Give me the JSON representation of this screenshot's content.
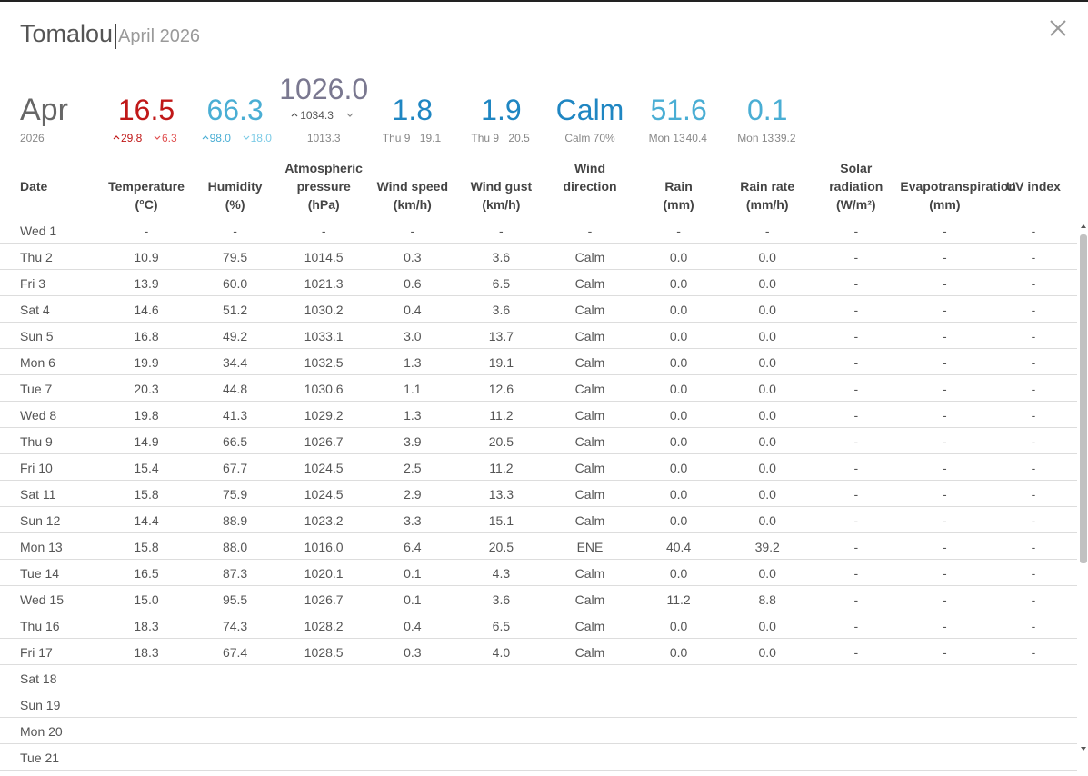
{
  "header": {
    "station": "Tomalou",
    "period": "April 2026"
  },
  "summary": {
    "month": "Apr",
    "year": "2026",
    "stats": [
      {
        "value": "16.5",
        "high": "29.8",
        "low": "6.3",
        "color": "#c01818"
      },
      {
        "value": "66.3",
        "high": "98.0",
        "low": "18.0",
        "color": "#4aaed4"
      },
      {
        "value": "1026.0",
        "high": "1034.3",
        "note": "1013.3",
        "color": "#7a7890"
      },
      {
        "value": "1.8",
        "day": "Thu 9",
        "max": "19.1",
        "color": "#1f86c2"
      },
      {
        "value": "1.9",
        "day": "Thu 9",
        "max": "20.5",
        "color": "#1f86c2"
      },
      {
        "value": "Calm",
        "note": "Calm 70%",
        "color": "#1f86c2"
      },
      {
        "value": "51.6",
        "day": "Mon 13",
        "max": "40.4",
        "color": "#4aaed4"
      },
      {
        "value": "0.1",
        "day": "Mon 13",
        "max": "39.2",
        "color": "#4aaed4"
      }
    ]
  },
  "table": {
    "headers": [
      [
        "Date"
      ],
      [
        "Temperature",
        "(°C)"
      ],
      [
        "Humidity",
        "(%)"
      ],
      [
        "Atmospheric",
        "pressure",
        "(hPa)"
      ],
      [
        "Wind speed",
        "(km/h)"
      ],
      [
        "Wind gust",
        "(km/h)"
      ],
      [
        "Wind",
        "direction"
      ],
      [
        "Rain",
        "(mm)"
      ],
      [
        "Rain rate",
        "(mm/h)"
      ],
      [
        "Solar",
        "radiation",
        "(W/m²)"
      ],
      [
        "Evapotranspiration",
        "(mm)"
      ],
      [
        "UV index"
      ]
    ],
    "rows": [
      [
        "Wed 1",
        "-",
        "-",
        "-",
        "-",
        "-",
        "-",
        "-",
        "-",
        "-",
        "-",
        "-"
      ],
      [
        "Thu 2",
        "10.9",
        "79.5",
        "1014.5",
        "0.3",
        "3.6",
        "Calm",
        "0.0",
        "0.0",
        "-",
        "-",
        "-"
      ],
      [
        "Fri 3",
        "13.9",
        "60.0",
        "1021.3",
        "0.6",
        "6.5",
        "Calm",
        "0.0",
        "0.0",
        "-",
        "-",
        "-"
      ],
      [
        "Sat 4",
        "14.6",
        "51.2",
        "1030.2",
        "0.4",
        "3.6",
        "Calm",
        "0.0",
        "0.0",
        "-",
        "-",
        "-"
      ],
      [
        "Sun 5",
        "16.8",
        "49.2",
        "1033.1",
        "3.0",
        "13.7",
        "Calm",
        "0.0",
        "0.0",
        "-",
        "-",
        "-"
      ],
      [
        "Mon 6",
        "19.9",
        "34.4",
        "1032.5",
        "1.3",
        "19.1",
        "Calm",
        "0.0",
        "0.0",
        "-",
        "-",
        "-"
      ],
      [
        "Tue 7",
        "20.3",
        "44.8",
        "1030.6",
        "1.1",
        "12.6",
        "Calm",
        "0.0",
        "0.0",
        "-",
        "-",
        "-"
      ],
      [
        "Wed 8",
        "19.8",
        "41.3",
        "1029.2",
        "1.3",
        "11.2",
        "Calm",
        "0.0",
        "0.0",
        "-",
        "-",
        "-"
      ],
      [
        "Thu 9",
        "14.9",
        "66.5",
        "1026.7",
        "3.9",
        "20.5",
        "Calm",
        "0.0",
        "0.0",
        "-",
        "-",
        "-"
      ],
      [
        "Fri 10",
        "15.4",
        "67.7",
        "1024.5",
        "2.5",
        "11.2",
        "Calm",
        "0.0",
        "0.0",
        "-",
        "-",
        "-"
      ],
      [
        "Sat 11",
        "15.8",
        "75.9",
        "1024.5",
        "2.9",
        "13.3",
        "Calm",
        "0.0",
        "0.0",
        "-",
        "-",
        "-"
      ],
      [
        "Sun 12",
        "14.4",
        "88.9",
        "1023.2",
        "3.3",
        "15.1",
        "Calm",
        "0.0",
        "0.0",
        "-",
        "-",
        "-"
      ],
      [
        "Mon 13",
        "15.8",
        "88.0",
        "1016.0",
        "6.4",
        "20.5",
        "ENE",
        "40.4",
        "39.2",
        "-",
        "-",
        "-"
      ],
      [
        "Tue 14",
        "16.5",
        "87.3",
        "1020.1",
        "0.1",
        "4.3",
        "Calm",
        "0.0",
        "0.0",
        "-",
        "-",
        "-"
      ],
      [
        "Wed 15",
        "15.0",
        "95.5",
        "1026.7",
        "0.1",
        "3.6",
        "Calm",
        "11.2",
        "8.8",
        "-",
        "-",
        "-"
      ],
      [
        "Thu 16",
        "18.3",
        "74.3",
        "1028.2",
        "0.4",
        "6.5",
        "Calm",
        "0.0",
        "0.0",
        "-",
        "-",
        "-"
      ],
      [
        "Fri 17",
        "18.3",
        "67.4",
        "1028.5",
        "0.3",
        "4.0",
        "Calm",
        "0.0",
        "0.0",
        "-",
        "-",
        "-"
      ],
      [
        "Sat 18"
      ],
      [
        "Sun 19"
      ],
      [
        "Mon 20"
      ],
      [
        "Tue 21"
      ]
    ]
  }
}
